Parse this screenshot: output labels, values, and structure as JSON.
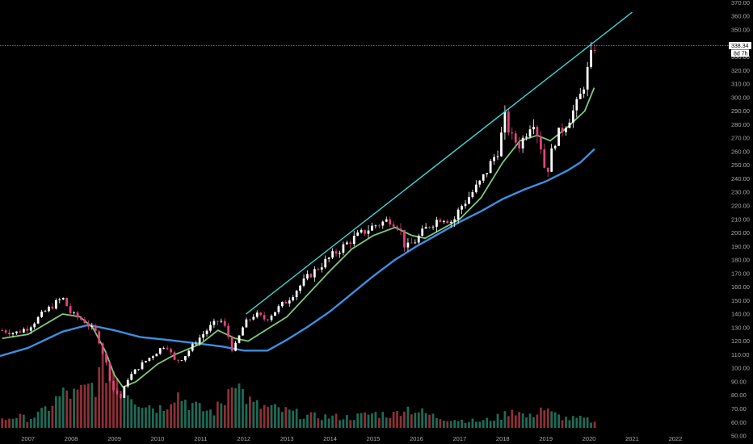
{
  "chart_data": {
    "type": "candlestick",
    "title": "",
    "y_axis": {
      "position": "right",
      "ylim": [
        44,
        372
      ],
      "ticks": [
        50,
        60,
        70,
        80,
        90,
        100,
        110,
        120,
        130,
        140,
        150,
        160,
        170,
        180,
        190,
        200,
        210,
        220,
        230,
        240,
        250,
        260,
        270,
        280,
        290,
        300,
        310,
        320,
        330,
        340,
        350,
        360,
        370
      ],
      "tick_labels": [
        "50.00",
        "60.00",
        "70.00",
        "80.00",
        "90.00",
        "100.00",
        "110.00",
        "120.00",
        "130.00",
        "140.00",
        "150.00",
        "160.00",
        "170.00",
        "180.00",
        "190.00",
        "200.00",
        "210.00",
        "220.00",
        "230.00",
        "240.00",
        "250.00",
        "260.00",
        "270.00",
        "280.00",
        "290.00",
        "300.00",
        "310.00",
        "320.00",
        "330.00",
        "340.00",
        "350.00",
        "360.00",
        "370.00"
      ]
    },
    "x_axis": {
      "xlim": [
        2006.35,
        2023.2
      ],
      "ticks": [
        2007,
        2008,
        2009,
        2010,
        2011,
        2012,
        2013,
        2014,
        2015,
        2016,
        2017,
        2018,
        2019,
        2020,
        2021,
        2022
      ],
      "tick_labels": [
        "2007",
        "2008",
        "2009",
        "2010",
        "2011",
        "2012",
        "2013",
        "2014",
        "2015",
        "2016",
        "2017",
        "2018",
        "2019",
        "2020",
        "2021",
        "2022"
      ]
    },
    "grid": false,
    "colors": {
      "background": "#000000",
      "up_candle": "#ffffff",
      "down_candle": "#e0457b",
      "volume_up": "#1f6b57",
      "volume_down": "#8f2f35",
      "fast_ma": "#7fc77a",
      "slow_ma": "#3d8fe0",
      "trendline": "#3fd3d3",
      "axis_text": "#a9a9a9"
    },
    "last_price": {
      "value": 338.34,
      "label": "338.34",
      "countdown": "8d 7h"
    },
    "price_anchors": [
      [
        2006.4,
        128
      ],
      [
        2006.7,
        126
      ],
      [
        2007.0,
        130
      ],
      [
        2007.4,
        142
      ],
      [
        2007.8,
        152
      ],
      [
        2008.0,
        140
      ],
      [
        2008.3,
        135
      ],
      [
        2008.6,
        125
      ],
      [
        2008.8,
        105
      ],
      [
        2008.95,
        85
      ],
      [
        2009.15,
        78
      ],
      [
        2009.3,
        92
      ],
      [
        2009.6,
        102
      ],
      [
        2009.9,
        110
      ],
      [
        2010.2,
        118
      ],
      [
        2010.4,
        105
      ],
      [
        2010.6,
        108
      ],
      [
        2010.9,
        120
      ],
      [
        2011.2,
        130
      ],
      [
        2011.45,
        136
      ],
      [
        2011.6,
        128
      ],
      [
        2011.75,
        112
      ],
      [
        2012.0,
        132
      ],
      [
        2012.25,
        140
      ],
      [
        2012.5,
        136
      ],
      [
        2012.75,
        143
      ],
      [
        2013.0,
        150
      ],
      [
        2013.5,
        168
      ],
      [
        2014.0,
        182
      ],
      [
        2014.5,
        195
      ],
      [
        2015.0,
        205
      ],
      [
        2015.4,
        210
      ],
      [
        2015.6,
        205
      ],
      [
        2015.75,
        188
      ],
      [
        2016.0,
        195
      ],
      [
        2016.3,
        206
      ],
      [
        2016.6,
        212
      ],
      [
        2016.85,
        208
      ],
      [
        2017.0,
        218
      ],
      [
        2017.5,
        238
      ],
      [
        2017.9,
        262
      ],
      [
        2018.05,
        285
      ],
      [
        2018.2,
        270
      ],
      [
        2018.4,
        265
      ],
      [
        2018.7,
        285
      ],
      [
        2018.9,
        262
      ],
      [
        2019.0,
        242
      ],
      [
        2019.2,
        268
      ],
      [
        2019.5,
        283
      ],
      [
        2019.75,
        296
      ],
      [
        2019.9,
        312
      ],
      [
        2020.05,
        330
      ],
      [
        2020.13,
        338.34
      ]
    ],
    "fast_ma_anchors": [
      [
        2006.4,
        122
      ],
      [
        2007.0,
        125
      ],
      [
        2007.8,
        140
      ],
      [
        2008.2,
        138
      ],
      [
        2008.5,
        130
      ],
      [
        2008.8,
        112
      ],
      [
        2009.0,
        95
      ],
      [
        2009.2,
        86
      ],
      [
        2009.5,
        90
      ],
      [
        2010.0,
        103
      ],
      [
        2010.4,
        110
      ],
      [
        2011.0,
        118
      ],
      [
        2011.4,
        128
      ],
      [
        2011.8,
        122
      ],
      [
        2012.1,
        120
      ],
      [
        2012.6,
        130
      ],
      [
        2013.0,
        138
      ],
      [
        2013.5,
        155
      ],
      [
        2014.0,
        172
      ],
      [
        2014.5,
        188
      ],
      [
        2015.0,
        198
      ],
      [
        2015.5,
        204
      ],
      [
        2015.9,
        198
      ],
      [
        2016.2,
        196
      ],
      [
        2016.6,
        203
      ],
      [
        2017.0,
        210
      ],
      [
        2017.5,
        226
      ],
      [
        2018.0,
        252
      ],
      [
        2018.4,
        268
      ],
      [
        2018.8,
        272
      ],
      [
        2019.1,
        268
      ],
      [
        2019.5,
        278
      ],
      [
        2019.9,
        290
      ],
      [
        2020.13,
        308
      ]
    ],
    "slow_ma_anchors": [
      [
        2006.35,
        109
      ],
      [
        2007.0,
        115
      ],
      [
        2007.8,
        127
      ],
      [
        2008.4,
        132
      ],
      [
        2009.0,
        128
      ],
      [
        2009.6,
        123
      ],
      [
        2010.2,
        121
      ],
      [
        2011.0,
        118
      ],
      [
        2011.5,
        116
      ],
      [
        2012.0,
        113
      ],
      [
        2012.55,
        113
      ],
      [
        2013.0,
        121
      ],
      [
        2013.5,
        131
      ],
      [
        2014.0,
        142
      ],
      [
        2014.5,
        155
      ],
      [
        2015.0,
        168
      ],
      [
        2015.5,
        180
      ],
      [
        2016.0,
        190
      ],
      [
        2016.5,
        199
      ],
      [
        2017.0,
        208
      ],
      [
        2017.5,
        216
      ],
      [
        2018.0,
        225
      ],
      [
        2018.5,
        232
      ],
      [
        2019.0,
        238
      ],
      [
        2019.5,
        246
      ],
      [
        2019.8,
        252
      ],
      [
        2020.13,
        262
      ]
    ],
    "trendline": {
      "x": [
        2012.05,
        2021.0
      ],
      "y": [
        140,
        363
      ]
    },
    "volume_profile": [
      [
        2006.4,
        0.12
      ],
      [
        2006.7,
        0.18
      ],
      [
        2007.0,
        0.14
      ],
      [
        2007.3,
        0.22
      ],
      [
        2007.6,
        0.4
      ],
      [
        2007.9,
        0.55
      ],
      [
        2008.1,
        0.48
      ],
      [
        2008.4,
        0.6
      ],
      [
        2008.6,
        0.72
      ],
      [
        2008.8,
        0.95
      ],
      [
        2009.0,
        0.9
      ],
      [
        2009.2,
        0.7
      ],
      [
        2009.5,
        0.45
      ],
      [
        2009.8,
        0.35
      ],
      [
        2010.1,
        0.3
      ],
      [
        2010.4,
        0.55
      ],
      [
        2010.7,
        0.4
      ],
      [
        2011.0,
        0.28
      ],
      [
        2011.3,
        0.25
      ],
      [
        2011.6,
        0.45
      ],
      [
        2011.75,
        0.98
      ],
      [
        2011.9,
        0.6
      ],
      [
        2012.2,
        0.35
      ],
      [
        2012.6,
        0.3
      ],
      [
        2013.0,
        0.25
      ],
      [
        2013.5,
        0.18
      ],
      [
        2014.0,
        0.17
      ],
      [
        2014.5,
        0.16
      ],
      [
        2015.0,
        0.22
      ],
      [
        2015.5,
        0.2
      ],
      [
        2015.7,
        0.32
      ],
      [
        2016.0,
        0.26
      ],
      [
        2016.5,
        0.16
      ],
      [
        2017.0,
        0.12
      ],
      [
        2017.5,
        0.1
      ],
      [
        2018.0,
        0.18
      ],
      [
        2018.2,
        0.3
      ],
      [
        2018.6,
        0.15
      ],
      [
        2018.9,
        0.32
      ],
      [
        2019.1,
        0.22
      ],
      [
        2019.5,
        0.14
      ],
      [
        2019.9,
        0.14
      ],
      [
        2020.13,
        0.08
      ]
    ]
  }
}
